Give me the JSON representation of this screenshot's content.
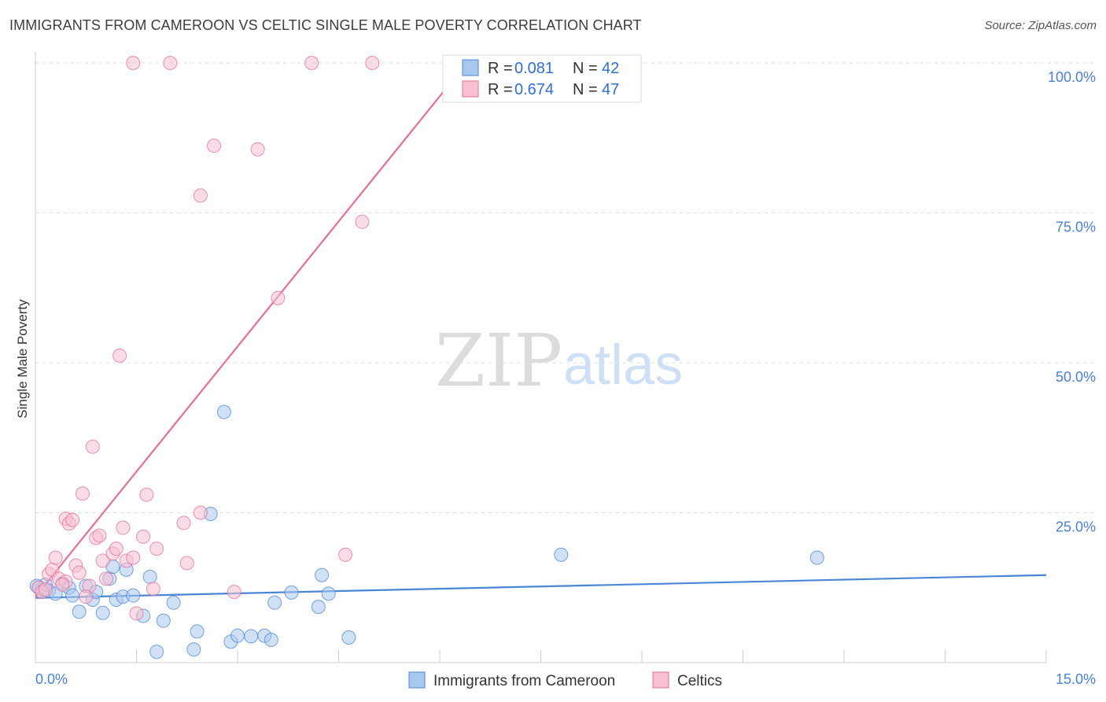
{
  "title": "IMMIGRANTS FROM CAMEROON VS CELTIC SINGLE MALE POVERTY CORRELATION CHART",
  "source": "Source: ZipAtlas.com",
  "watermark": {
    "zip": "ZIP",
    "atlas": "atlas"
  },
  "chart_data": {
    "type": "scatter",
    "title": "IMMIGRANTS FROM CAMEROON VS CELTIC SINGLE MALE POVERTY CORRELATION CHART",
    "xlabel": "",
    "ylabel": "Single Male Poverty",
    "xlim": [
      0,
      15
    ],
    "ylim": [
      0,
      100
    ],
    "x_tick_labels": [
      "0.0%",
      "15.0%"
    ],
    "y_ticks": [
      25,
      50,
      75,
      100
    ],
    "y_tick_labels": [
      "25.0%",
      "50.0%",
      "75.0%",
      "100.0%"
    ],
    "legend_stats": [
      {
        "r_label": "R = ",
        "r_value": "0.081",
        "n_label": "N = ",
        "n_value": "42"
      },
      {
        "r_label": "R = ",
        "r_value": "0.674",
        "n_label": "N = ",
        "n_value": "47"
      }
    ],
    "series": [
      {
        "name": "Immigrants from Cameroon",
        "color": "#4a86d6",
        "fill": "#a9c8ee",
        "trend": {
          "x": [
            0,
            15
          ],
          "y": [
            10.8,
            14.6
          ]
        },
        "points": [
          {
            "x": 0.05,
            "y": 12.5
          },
          {
            "x": 0.1,
            "y": 12.2
          },
          {
            "x": 0.15,
            "y": 13.0
          },
          {
            "x": 0.2,
            "y": 12.0
          },
          {
            "x": 0.3,
            "y": 11.5
          },
          {
            "x": 0.4,
            "y": 13.2
          },
          {
            "x": 0.5,
            "y": 12.5
          },
          {
            "x": 0.55,
            "y": 11.2
          },
          {
            "x": 0.65,
            "y": 8.5
          },
          {
            "x": 0.75,
            "y": 12.8
          },
          {
            "x": 0.85,
            "y": 10.5
          },
          {
            "x": 0.9,
            "y": 11.8
          },
          {
            "x": 1.0,
            "y": 8.3
          },
          {
            "x": 1.1,
            "y": 14.0
          },
          {
            "x": 1.15,
            "y": 16.0
          },
          {
            "x": 1.2,
            "y": 10.5
          },
          {
            "x": 1.3,
            "y": 11.0
          },
          {
            "x": 1.35,
            "y": 15.5
          },
          {
            "x": 1.45,
            "y": 11.2
          },
          {
            "x": 1.6,
            "y": 7.8
          },
          {
            "x": 1.7,
            "y": 14.3
          },
          {
            "x": 1.8,
            "y": 1.8
          },
          {
            "x": 1.9,
            "y": 7.0
          },
          {
            "x": 2.05,
            "y": 10.0
          },
          {
            "x": 2.35,
            "y": 2.2
          },
          {
            "x": 2.4,
            "y": 5.2
          },
          {
            "x": 2.6,
            "y": 24.8
          },
          {
            "x": 2.8,
            "y": 41.8
          },
          {
            "x": 2.9,
            "y": 3.5
          },
          {
            "x": 3.0,
            "y": 4.5
          },
          {
            "x": 3.2,
            "y": 4.4
          },
          {
            "x": 3.4,
            "y": 4.5
          },
          {
            "x": 3.5,
            "y": 3.8
          },
          {
            "x": 3.55,
            "y": 10.0
          },
          {
            "x": 3.8,
            "y": 11.7
          },
          {
            "x": 4.2,
            "y": 9.3
          },
          {
            "x": 4.25,
            "y": 14.6
          },
          {
            "x": 4.35,
            "y": 11.5
          },
          {
            "x": 4.65,
            "y": 4.2
          },
          {
            "x": 7.8,
            "y": 18.0
          },
          {
            "x": 11.6,
            "y": 17.5
          },
          {
            "x": 0.02,
            "y": 12.8
          }
        ]
      },
      {
        "name": "Celtics",
        "color": "#e26f98",
        "fill": "#f6bfd2",
        "trend": {
          "x": [
            0,
            6.4
          ],
          "y": [
            11.0,
            100
          ]
        },
        "points": [
          {
            "x": 0.05,
            "y": 12.5
          },
          {
            "x": 0.1,
            "y": 11.8
          },
          {
            "x": 0.2,
            "y": 14.8
          },
          {
            "x": 0.25,
            "y": 15.5
          },
          {
            "x": 0.3,
            "y": 17.5
          },
          {
            "x": 0.35,
            "y": 14.0
          },
          {
            "x": 0.45,
            "y": 13.5
          },
          {
            "x": 0.45,
            "y": 24.0
          },
          {
            "x": 0.5,
            "y": 23.2
          },
          {
            "x": 0.55,
            "y": 23.8
          },
          {
            "x": 0.6,
            "y": 16.2
          },
          {
            "x": 0.65,
            "y": 15.0
          },
          {
            "x": 0.7,
            "y": 28.2
          },
          {
            "x": 0.8,
            "y": 12.8
          },
          {
            "x": 0.85,
            "y": 36.0
          },
          {
            "x": 0.9,
            "y": 20.8
          },
          {
            "x": 0.95,
            "y": 21.2
          },
          {
            "x": 1.0,
            "y": 17.0
          },
          {
            "x": 1.05,
            "y": 14.0
          },
          {
            "x": 1.15,
            "y": 18.2
          },
          {
            "x": 1.2,
            "y": 19.0
          },
          {
            "x": 1.25,
            "y": 51.2
          },
          {
            "x": 1.3,
            "y": 22.5
          },
          {
            "x": 1.35,
            "y": 17.0
          },
          {
            "x": 1.45,
            "y": 17.5
          },
          {
            "x": 1.5,
            "y": 8.2
          },
          {
            "x": 1.6,
            "y": 21.0
          },
          {
            "x": 1.65,
            "y": 28.0
          },
          {
            "x": 1.75,
            "y": 12.3
          },
          {
            "x": 1.8,
            "y": 19.0
          },
          {
            "x": 1.45,
            "y": 100
          },
          {
            "x": 2.0,
            "y": 100
          },
          {
            "x": 2.2,
            "y": 23.3
          },
          {
            "x": 2.25,
            "y": 16.6
          },
          {
            "x": 2.45,
            "y": 77.9
          },
          {
            "x": 2.45,
            "y": 25.0
          },
          {
            "x": 2.65,
            "y": 86.2
          },
          {
            "x": 2.95,
            "y": 11.8
          },
          {
            "x": 3.3,
            "y": 85.6
          },
          {
            "x": 3.6,
            "y": 60.8
          },
          {
            "x": 4.1,
            "y": 100
          },
          {
            "x": 4.6,
            "y": 18.0
          },
          {
            "x": 4.85,
            "y": 73.5
          },
          {
            "x": 5.0,
            "y": 100
          },
          {
            "x": 0.15,
            "y": 12.2
          },
          {
            "x": 0.4,
            "y": 13.0
          },
          {
            "x": 0.75,
            "y": 11.0
          }
        ]
      }
    ]
  }
}
